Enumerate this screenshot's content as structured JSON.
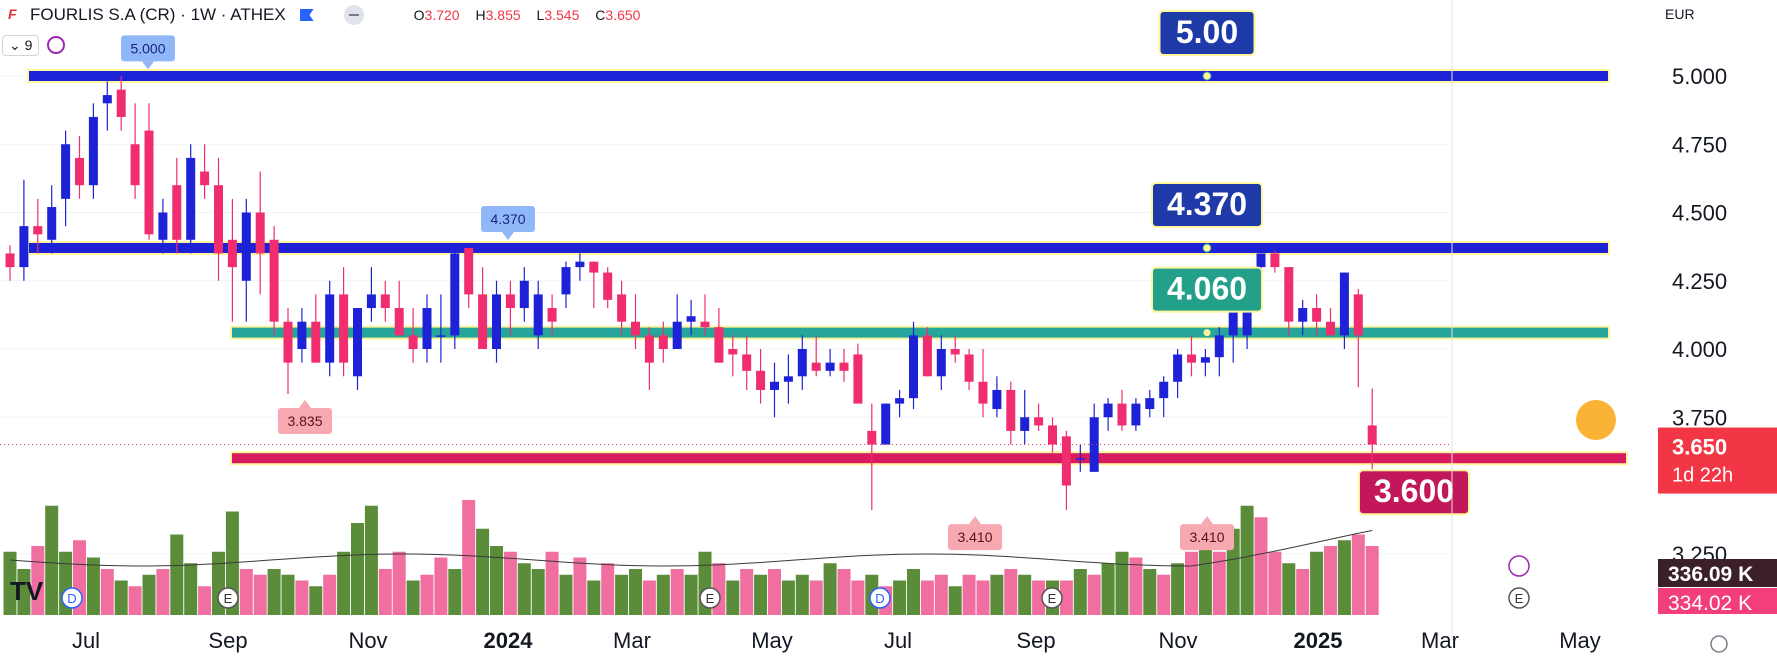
{
  "header": {
    "symbol": "FOURLIS S.A (CR) · 1W · ATHEX",
    "open_label": "O",
    "open": "3.720",
    "high_label": "H",
    "high": "3.855",
    "low_label": "L",
    "low": "3.545",
    "close_label": "C",
    "close": "3.650",
    "logo": "F"
  },
  "indicator": {
    "count": "9"
  },
  "currency": "EUR",
  "colors": {
    "up": "#1e22d6",
    "down": "#ef2d6f",
    "vol_up": "#5b8c3a",
    "vol_down": "#f06fa0"
  },
  "chart_data": {
    "type": "candlestick",
    "y_axis": {
      "min": 3.25,
      "max": 5.0,
      "ticks": [
        "5.000",
        "4.750",
        "4.500",
        "4.250",
        "4.000",
        "3.750",
        "3.250"
      ]
    },
    "x_ticks": [
      "Jul",
      "Sep",
      "Nov",
      "2024",
      "Mar",
      "May",
      "Jul",
      "Sep",
      "Nov",
      "2025",
      "Mar",
      "May"
    ],
    "candles": [
      [
        4.35,
        4.38,
        4.25,
        4.3
      ],
      [
        4.3,
        4.62,
        4.25,
        4.45
      ],
      [
        4.45,
        4.55,
        4.35,
        4.42
      ],
      [
        4.4,
        4.6,
        4.35,
        4.52
      ],
      [
        4.55,
        4.8,
        4.45,
        4.75
      ],
      [
        4.7,
        4.78,
        4.55,
        4.6
      ],
      [
        4.6,
        4.9,
        4.55,
        4.85
      ],
      [
        4.9,
        4.98,
        4.8,
        4.93
      ],
      [
        4.95,
        5.0,
        4.8,
        4.85
      ],
      [
        4.75,
        4.9,
        4.55,
        4.6
      ],
      [
        4.8,
        4.9,
        4.4,
        4.42
      ],
      [
        4.4,
        4.55,
        4.35,
        4.5
      ],
      [
        4.6,
        4.7,
        4.35,
        4.4
      ],
      [
        4.4,
        4.75,
        4.35,
        4.7
      ],
      [
        4.65,
        4.75,
        4.55,
        4.6
      ],
      [
        4.6,
        4.7,
        4.25,
        4.35
      ],
      [
        4.4,
        4.55,
        4.1,
        4.3
      ],
      [
        4.25,
        4.55,
        4.1,
        4.5
      ],
      [
        4.5,
        4.65,
        4.2,
        4.35
      ],
      [
        4.4,
        4.45,
        4.05,
        4.1
      ],
      [
        4.1,
        4.15,
        3.835,
        3.95
      ],
      [
        4.0,
        4.15,
        3.95,
        4.1
      ],
      [
        4.1,
        4.2,
        3.95,
        3.95
      ],
      [
        3.95,
        4.25,
        3.9,
        4.2
      ],
      [
        4.2,
        4.3,
        3.9,
        3.95
      ],
      [
        3.9,
        4.15,
        3.85,
        4.15
      ],
      [
        4.15,
        4.3,
        4.1,
        4.2
      ],
      [
        4.2,
        4.25,
        4.1,
        4.15
      ],
      [
        4.15,
        4.25,
        4.05,
        4.05
      ],
      [
        4.05,
        4.15,
        3.95,
        4.0
      ],
      [
        4.0,
        4.2,
        3.95,
        4.15
      ],
      [
        4.05,
        4.2,
        3.95,
        4.05
      ],
      [
        4.05,
        4.37,
        4.0,
        4.35
      ],
      [
        4.37,
        4.37,
        4.15,
        4.2
      ],
      [
        4.2,
        4.3,
        4.0,
        4.0
      ],
      [
        4.0,
        4.25,
        3.95,
        4.2
      ],
      [
        4.2,
        4.25,
        4.05,
        4.15
      ],
      [
        4.15,
        4.3,
        4.1,
        4.25
      ],
      [
        4.05,
        4.25,
        4.0,
        4.2
      ],
      [
        4.15,
        4.2,
        4.05,
        4.1
      ],
      [
        4.2,
        4.32,
        4.15,
        4.3
      ],
      [
        4.3,
        4.35,
        4.25,
        4.32
      ],
      [
        4.32,
        4.32,
        4.15,
        4.28
      ],
      [
        4.28,
        4.3,
        4.15,
        4.18
      ],
      [
        4.2,
        4.25,
        4.05,
        4.1
      ],
      [
        4.1,
        4.2,
        4.0,
        4.05
      ],
      [
        4.05,
        4.08,
        3.85,
        3.95
      ],
      [
        4.05,
        4.1,
        3.95,
        4.0
      ],
      [
        4.0,
        4.2,
        4.0,
        4.1
      ],
      [
        4.1,
        4.18,
        4.05,
        4.12
      ],
      [
        4.1,
        4.2,
        4.05,
        4.08
      ],
      [
        4.08,
        4.15,
        3.95,
        3.95
      ],
      [
        4.0,
        4.05,
        3.9,
        3.98
      ],
      [
        3.98,
        4.05,
        3.85,
        3.92
      ],
      [
        3.92,
        4.0,
        3.8,
        3.85
      ],
      [
        3.85,
        3.95,
        3.75,
        3.88
      ],
      [
        3.88,
        3.98,
        3.8,
        3.9
      ],
      [
        3.9,
        4.05,
        3.85,
        4.0
      ],
      [
        3.95,
        4.05,
        3.9,
        3.92
      ],
      [
        3.92,
        4.0,
        3.9,
        3.95
      ],
      [
        3.95,
        4.0,
        3.88,
        3.92
      ],
      [
        3.98,
        4.02,
        3.8,
        3.8
      ],
      [
        3.7,
        3.8,
        3.41,
        3.65
      ],
      [
        3.65,
        3.8,
        3.65,
        3.8
      ],
      [
        3.8,
        3.85,
        3.75,
        3.82
      ],
      [
        3.82,
        4.1,
        3.78,
        4.05
      ],
      [
        4.05,
        4.08,
        3.9,
        3.9
      ],
      [
        3.9,
        4.05,
        3.85,
        4.0
      ],
      [
        4.0,
        4.05,
        3.95,
        3.98
      ],
      [
        3.98,
        4.0,
        3.85,
        3.88
      ],
      [
        3.88,
        4.0,
        3.75,
        3.8
      ],
      [
        3.78,
        3.9,
        3.75,
        3.85
      ],
      [
        3.85,
        3.88,
        3.65,
        3.7
      ],
      [
        3.7,
        3.85,
        3.65,
        3.75
      ],
      [
        3.75,
        3.8,
        3.7,
        3.72
      ],
      [
        3.72,
        3.75,
        3.62,
        3.65
      ],
      [
        3.68,
        3.7,
        3.41,
        3.5
      ],
      [
        3.6,
        3.65,
        3.55,
        3.6
      ],
      [
        3.55,
        3.8,
        3.55,
        3.75
      ],
      [
        3.75,
        3.82,
        3.7,
        3.8
      ],
      [
        3.8,
        3.85,
        3.7,
        3.72
      ],
      [
        3.72,
        3.82,
        3.7,
        3.8
      ],
      [
        3.78,
        3.85,
        3.75,
        3.82
      ],
      [
        3.82,
        3.9,
        3.75,
        3.88
      ],
      [
        3.88,
        4.0,
        3.82,
        3.98
      ],
      [
        3.98,
        4.05,
        3.9,
        3.95
      ],
      [
        3.95,
        4.0,
        3.9,
        3.97
      ],
      [
        3.97,
        4.08,
        3.9,
        4.05
      ],
      [
        4.05,
        4.25,
        3.95,
        4.2
      ],
      [
        4.05,
        4.3,
        4.0,
        4.3
      ],
      [
        4.3,
        4.35,
        4.2,
        4.35
      ],
      [
        4.35,
        4.36,
        4.28,
        4.3
      ],
      [
        4.3,
        4.3,
        4.05,
        4.1
      ],
      [
        4.1,
        4.18,
        4.05,
        4.15
      ],
      [
        4.15,
        4.2,
        4.05,
        4.1
      ],
      [
        4.1,
        4.15,
        4.05,
        4.05
      ],
      [
        4.05,
        4.28,
        4.0,
        4.28
      ],
      [
        4.2,
        4.22,
        3.86,
        4.05
      ],
      [
        3.72,
        3.855,
        3.545,
        3.65
      ]
    ],
    "volume": [
      [
        0.55,
        1
      ],
      [
        0.4,
        1
      ],
      [
        0.6,
        0
      ],
      [
        0.95,
        1
      ],
      [
        0.55,
        1
      ],
      [
        0.65,
        0
      ],
      [
        0.5,
        1
      ],
      [
        0.4,
        0
      ],
      [
        0.3,
        1
      ],
      [
        0.25,
        0
      ],
      [
        0.35,
        1
      ],
      [
        0.4,
        0
      ],
      [
        0.7,
        1
      ],
      [
        0.45,
        1
      ],
      [
        0.25,
        0
      ],
      [
        0.55,
        1
      ],
      [
        0.9,
        1
      ],
      [
        0.4,
        0
      ],
      [
        0.35,
        0
      ],
      [
        0.4,
        1
      ],
      [
        0.35,
        1
      ],
      [
        0.3,
        0
      ],
      [
        0.25,
        1
      ],
      [
        0.35,
        0
      ],
      [
        0.55,
        1
      ],
      [
        0.8,
        1
      ],
      [
        0.95,
        1
      ],
      [
        0.4,
        0
      ],
      [
        0.55,
        0
      ],
      [
        0.3,
        1
      ],
      [
        0.35,
        0
      ],
      [
        0.5,
        0
      ],
      [
        0.4,
        1
      ],
      [
        1.0,
        0
      ],
      [
        0.75,
        1
      ],
      [
        0.6,
        1
      ],
      [
        0.55,
        0
      ],
      [
        0.45,
        1
      ],
      [
        0.4,
        1
      ],
      [
        0.55,
        0
      ],
      [
        0.35,
        1
      ],
      [
        0.5,
        0
      ],
      [
        0.3,
        1
      ],
      [
        0.45,
        0
      ],
      [
        0.35,
        1
      ],
      [
        0.4,
        1
      ],
      [
        0.3,
        0
      ],
      [
        0.35,
        1
      ],
      [
        0.4,
        0
      ],
      [
        0.35,
        1
      ],
      [
        0.55,
        1
      ],
      [
        0.45,
        0
      ],
      [
        0.3,
        1
      ],
      [
        0.4,
        0
      ],
      [
        0.35,
        1
      ],
      [
        0.4,
        0
      ],
      [
        0.3,
        1
      ],
      [
        0.35,
        1
      ],
      [
        0.3,
        0
      ],
      [
        0.45,
        1
      ],
      [
        0.4,
        0
      ],
      [
        0.3,
        0
      ],
      [
        0.35,
        1
      ],
      [
        0.25,
        0
      ],
      [
        0.3,
        1
      ],
      [
        0.4,
        1
      ],
      [
        0.3,
        0
      ],
      [
        0.35,
        0
      ],
      [
        0.25,
        1
      ],
      [
        0.35,
        0
      ],
      [
        0.3,
        0
      ],
      [
        0.35,
        1
      ],
      [
        0.4,
        0
      ],
      [
        0.35,
        1
      ],
      [
        0.3,
        0
      ],
      [
        0.3,
        1
      ],
      [
        0.3,
        0
      ],
      [
        0.4,
        1
      ],
      [
        0.35,
        0
      ],
      [
        0.45,
        1
      ],
      [
        0.55,
        1
      ],
      [
        0.5,
        0
      ],
      [
        0.4,
        1
      ],
      [
        0.35,
        0
      ],
      [
        0.45,
        1
      ],
      [
        0.55,
        0
      ],
      [
        0.6,
        1
      ],
      [
        0.55,
        0
      ],
      [
        0.75,
        1
      ],
      [
        0.95,
        1
      ],
      [
        0.85,
        0
      ],
      [
        0.55,
        0
      ],
      [
        0.45,
        1
      ],
      [
        0.4,
        0
      ],
      [
        0.55,
        1
      ],
      [
        0.6,
        0
      ],
      [
        0.65,
        1
      ],
      [
        0.7,
        0
      ],
      [
        0.6,
        0
      ]
    ],
    "levels": [
      {
        "price": 5.0,
        "label": "5.00",
        "color": "#1e22d6",
        "label_bg": "#1e3aa8"
      },
      {
        "price": 4.37,
        "label": "4.370",
        "color": "#1e22d6",
        "label_bg": "#1e3aa8"
      },
      {
        "price": 4.06,
        "label": "4.060",
        "color": "#26a69a",
        "label_bg": "#22a08a"
      },
      {
        "price": 3.6,
        "label": "3.600",
        "color": "#d81b60",
        "label_bg": "#c2185b"
      }
    ],
    "callouts": [
      {
        "label": "5.000",
        "type": "high"
      },
      {
        "label": "4.370",
        "type": "high"
      },
      {
        "label": "3.835",
        "type": "low"
      },
      {
        "label": "3.410",
        "type": "low"
      },
      {
        "label": "3.410",
        "type": "low"
      }
    ],
    "last_price": "3.650",
    "countdown": "1d 22h",
    "vol_label_1": "336.09 K",
    "vol_label_2": "334.02 K"
  }
}
